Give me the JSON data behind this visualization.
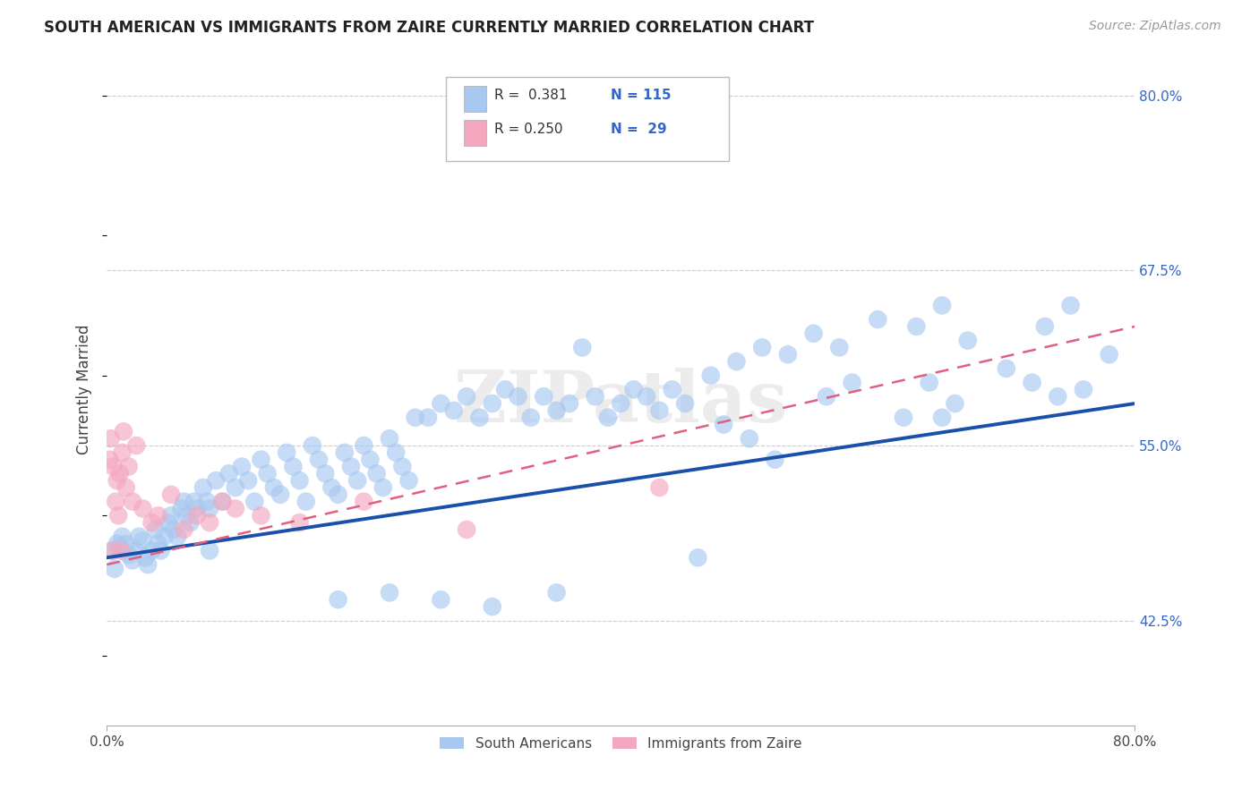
{
  "title": "SOUTH AMERICAN VS IMMIGRANTS FROM ZAIRE CURRENTLY MARRIED CORRELATION CHART",
  "source": "Source: ZipAtlas.com",
  "ylabel": "Currently Married",
  "right_yticks": [
    42.5,
    55.0,
    67.5,
    80.0
  ],
  "right_ytick_labels": [
    "42.5%",
    "55.0%",
    "67.5%",
    "80.0%"
  ],
  "blue_color": "#A8C8F0",
  "pink_color": "#F4A8C0",
  "blue_line_color": "#1A4FAA",
  "pink_line_color": "#E06080",
  "title_color": "#222222",
  "source_color": "#999999",
  "grid_color": "#CCCCCC",
  "background_color": "#FFFFFF",
  "watermark": "ZIPatlas",
  "xlim": [
    0,
    80
  ],
  "ylim": [
    35,
    83
  ],
  "blue_trend": [
    47.0,
    58.0
  ],
  "pink_trend": [
    46.5,
    63.5
  ],
  "blue_x": [
    0.4,
    0.6,
    0.8,
    1.0,
    1.2,
    1.5,
    1.7,
    2.0,
    2.2,
    2.5,
    2.8,
    3.0,
    3.2,
    3.5,
    3.8,
    4.0,
    4.2,
    4.5,
    4.8,
    5.0,
    5.2,
    5.5,
    5.8,
    6.0,
    6.2,
    6.5,
    6.8,
    7.0,
    7.5,
    7.8,
    8.0,
    8.5,
    9.0,
    9.5,
    10.0,
    10.5,
    11.0,
    11.5,
    12.0,
    12.5,
    13.0,
    13.5,
    14.0,
    14.5,
    15.0,
    15.5,
    16.0,
    16.5,
    17.0,
    17.5,
    18.0,
    18.5,
    19.0,
    19.5,
    20.0,
    20.5,
    21.0,
    21.5,
    22.0,
    22.5,
    23.0,
    23.5,
    24.0,
    25.0,
    26.0,
    27.0,
    28.0,
    29.0,
    30.0,
    31.0,
    32.0,
    33.0,
    34.0,
    35.0,
    36.0,
    37.0,
    38.0,
    39.0,
    40.0,
    41.0,
    42.0,
    43.0,
    44.0,
    45.0,
    47.0,
    49.0,
    51.0,
    53.0,
    55.0,
    57.0,
    60.0,
    63.0,
    65.0,
    67.0,
    70.0,
    73.0,
    75.0,
    76.0,
    78.0,
    65.0,
    48.0,
    50.0,
    52.0,
    46.0,
    58.0,
    56.0,
    62.0,
    64.0,
    66.0,
    72.0,
    74.0,
    35.0,
    30.0,
    26.0,
    22.0,
    18.0,
    8.0
  ],
  "blue_y": [
    47.5,
    46.2,
    48.0,
    47.8,
    48.5,
    48.0,
    47.2,
    46.8,
    47.5,
    48.5,
    48.2,
    47.0,
    46.5,
    47.5,
    49.0,
    48.0,
    47.5,
    48.5,
    49.5,
    50.0,
    49.0,
    48.5,
    50.5,
    51.0,
    50.0,
    49.5,
    51.0,
    50.5,
    52.0,
    51.0,
    50.5,
    52.5,
    51.0,
    53.0,
    52.0,
    53.5,
    52.5,
    51.0,
    54.0,
    53.0,
    52.0,
    51.5,
    54.5,
    53.5,
    52.5,
    51.0,
    55.0,
    54.0,
    53.0,
    52.0,
    51.5,
    54.5,
    53.5,
    52.5,
    55.0,
    54.0,
    53.0,
    52.0,
    55.5,
    54.5,
    53.5,
    52.5,
    57.0,
    57.0,
    58.0,
    57.5,
    58.5,
    57.0,
    58.0,
    59.0,
    58.5,
    57.0,
    58.5,
    57.5,
    58.0,
    62.0,
    58.5,
    57.0,
    58.0,
    59.0,
    58.5,
    57.5,
    59.0,
    58.0,
    60.0,
    61.0,
    62.0,
    61.5,
    63.0,
    62.0,
    64.0,
    63.5,
    65.0,
    62.5,
    60.5,
    63.5,
    65.0,
    59.0,
    61.5,
    57.0,
    56.5,
    55.5,
    54.0,
    47.0,
    59.5,
    58.5,
    57.0,
    59.5,
    58.0,
    59.5,
    58.5,
    44.5,
    43.5,
    44.0,
    44.5,
    44.0,
    47.5
  ],
  "pink_x": [
    0.2,
    0.3,
    0.5,
    0.5,
    0.7,
    0.8,
    0.9,
    1.0,
    1.1,
    1.2,
    1.3,
    1.5,
    1.7,
    2.0,
    2.3,
    2.8,
    3.5,
    4.0,
    5.0,
    6.0,
    7.0,
    8.0,
    9.0,
    10.0,
    12.0,
    15.0,
    20.0,
    28.0,
    43.0
  ],
  "pink_y": [
    54.0,
    55.5,
    53.5,
    47.5,
    51.0,
    52.5,
    50.0,
    53.0,
    47.5,
    54.5,
    56.0,
    52.0,
    53.5,
    51.0,
    55.0,
    50.5,
    49.5,
    50.0,
    51.5,
    49.0,
    50.0,
    49.5,
    51.0,
    50.5,
    50.0,
    49.5,
    51.0,
    49.0,
    52.0
  ]
}
